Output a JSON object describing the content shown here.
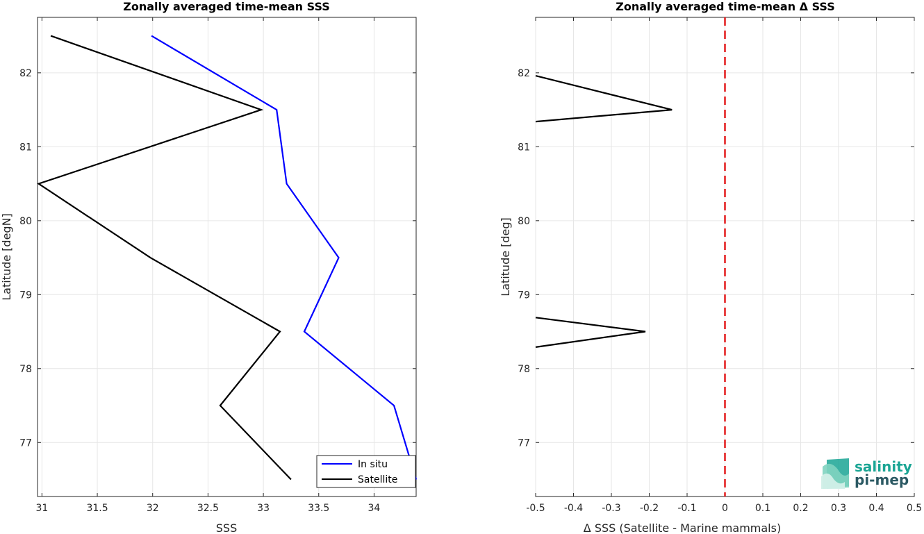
{
  "chart_data": [
    {
      "type": "line",
      "title": "Zonally averaged time-mean SSS",
      "xlabel": "SSS",
      "ylabel": "Latitude [degN]",
      "xlim": [
        30.96,
        34.38
      ],
      "ylim": [
        76.27,
        82.75
      ],
      "xticks": [
        "31",
        "31.5",
        "32",
        "32.5",
        "33",
        "33.5",
        "34"
      ],
      "xtick_values": [
        31,
        31.5,
        32,
        32.5,
        33,
        33.5,
        34
      ],
      "yticks": [
        "77",
        "78",
        "79",
        "80",
        "81",
        "82"
      ],
      "ytick_values": [
        77,
        78,
        79,
        80,
        81,
        82
      ],
      "grid": true,
      "legend_position": "bottom-right",
      "series": [
        {
          "name": "In situ",
          "color": "#0000ff",
          "points": [
            [
              31.99,
              82.5
            ],
            [
              33.12,
              81.5
            ],
            [
              33.21,
              80.5
            ],
            [
              33.68,
              79.5
            ],
            [
              33.37,
              78.5
            ],
            [
              34.18,
              77.5
            ],
            [
              34.38,
              76.5
            ]
          ]
        },
        {
          "name": "Satellite",
          "color": "#000000",
          "points": [
            [
              31.08,
              82.5
            ],
            [
              32.98,
              81.5
            ],
            [
              30.97,
              80.5
            ],
            [
              31.98,
              79.5
            ],
            [
              33.15,
              78.5
            ],
            [
              32.61,
              77.5
            ],
            [
              33.25,
              76.5
            ]
          ]
        }
      ]
    },
    {
      "type": "line",
      "title": "Zonally averaged time-mean Δ SSS",
      "xlabel": "Δ SSS (Satellite - Marine mammals)",
      "ylabel": "Latitude [deg]",
      "xlim": [
        -0.5,
        0.5
      ],
      "ylim": [
        76.27,
        82.75
      ],
      "xticks": [
        "-0.5",
        "-0.4",
        "-0.3",
        "-0.2",
        "-0.1",
        "0",
        "0.1",
        "0.2",
        "0.3",
        "0.4",
        "0.5"
      ],
      "xtick_values": [
        -0.5,
        -0.4,
        -0.3,
        -0.2,
        -0.1,
        0,
        0.1,
        0.2,
        0.3,
        0.4,
        0.5
      ],
      "yticks": [
        "77",
        "78",
        "79",
        "80",
        "81",
        "82"
      ],
      "ytick_values": [
        77,
        78,
        79,
        80,
        81,
        82
      ],
      "grid": true,
      "reference_line": {
        "x": 0,
        "color": "#e31a1c",
        "style": "dashed"
      },
      "series": [
        {
          "color": "#000000",
          "points": [
            [
              -0.5,
              81.96
            ],
            [
              -0.14,
              81.5
            ],
            [
              -0.5,
              81.34
            ]
          ]
        },
        {
          "color": "#000000",
          "points": [
            [
              -0.5,
              78.69
            ],
            [
              -0.21,
              78.5
            ],
            [
              -0.5,
              78.29
            ]
          ]
        }
      ]
    }
  ],
  "logo": {
    "line1": "salinity",
    "line2": "pi-mep",
    "colors": [
      "#1aa594",
      "#2b5963",
      "#7fd3c0"
    ]
  }
}
